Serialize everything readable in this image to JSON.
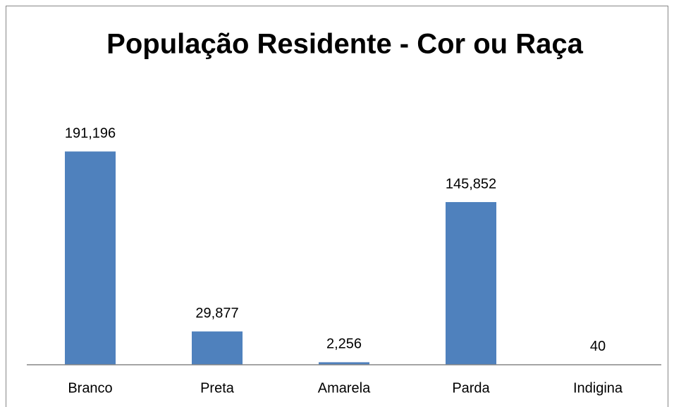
{
  "chart_data": {
    "type": "bar",
    "title": "População Residente - Cor ou Raça",
    "categories": [
      "Branco",
      "Preta",
      "Amarela",
      "Parda",
      "Indigina"
    ],
    "values": [
      191196,
      29877,
      2256,
      145852,
      40
    ],
    "value_labels": [
      "191,196",
      "29,877",
      "2,256",
      "145,852",
      "40"
    ],
    "color": "#4f81bd",
    "ylim": [
      0,
      250000
    ]
  }
}
